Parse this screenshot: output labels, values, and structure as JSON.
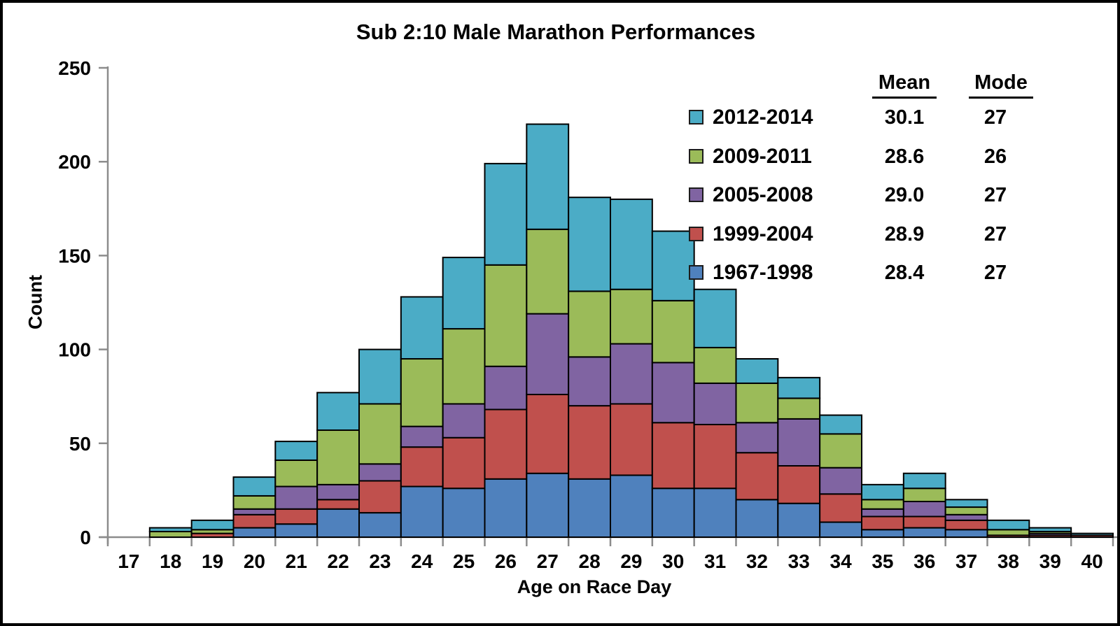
{
  "title": "Sub 2:10 Male Marathon Performances",
  "legend": {
    "mean_header": "Mean",
    "mode_header": "Mode",
    "rows": [
      {
        "label": "2012-2014",
        "mean": "30.1",
        "mode": "27",
        "color": "#4BACC6"
      },
      {
        "label": "2009-2011",
        "mean": "28.6",
        "mode": "26",
        "color": "#9BBB59"
      },
      {
        "label": "2005-2008",
        "mean": "29.0",
        "mode": "27",
        "color": "#8064A2"
      },
      {
        "label": "1999-2004",
        "mean": "28.9",
        "mode": "27",
        "color": "#C0504D"
      },
      {
        "label": "1967-1998",
        "mean": "28.4",
        "mode": "27",
        "color": "#4F81BD"
      }
    ]
  },
  "chart_data": {
    "type": "bar",
    "stacked": true,
    "title": "Sub 2:10 Male Marathon Performances",
    "xlabel": "Age on Race Day",
    "ylabel": "Count",
    "categories": [
      17,
      18,
      19,
      20,
      21,
      22,
      23,
      24,
      25,
      26,
      27,
      28,
      29,
      30,
      31,
      32,
      33,
      34,
      35,
      36,
      37,
      38,
      39,
      40
    ],
    "series": [
      {
        "name": "1967-1998",
        "color": "#4F81BD",
        "values": [
          0,
          0,
          0,
          5,
          7,
          15,
          13,
          27,
          26,
          31,
          34,
          31,
          33,
          26,
          26,
          20,
          18,
          8,
          4,
          5,
          4,
          0,
          0,
          0
        ]
      },
      {
        "name": "1999-2004",
        "color": "#C0504D",
        "values": [
          0,
          0,
          2,
          7,
          8,
          5,
          17,
          21,
          27,
          37,
          42,
          39,
          38,
          35,
          34,
          25,
          20,
          15,
          7,
          6,
          5,
          1,
          1,
          1
        ]
      },
      {
        "name": "2005-2008",
        "color": "#8064A2",
        "values": [
          0,
          0,
          0,
          3,
          12,
          8,
          9,
          11,
          18,
          23,
          43,
          26,
          32,
          32,
          22,
          16,
          25,
          14,
          4,
          8,
          3,
          0,
          1,
          0
        ]
      },
      {
        "name": "2009-2011",
        "color": "#9BBB59",
        "values": [
          0,
          3,
          2,
          7,
          14,
          29,
          32,
          36,
          40,
          54,
          45,
          35,
          29,
          33,
          19,
          21,
          11,
          18,
          5,
          7,
          4,
          3,
          1,
          0
        ]
      },
      {
        "name": "2012-2014",
        "color": "#4BACC6",
        "values": [
          0,
          2,
          5,
          10,
          10,
          20,
          29,
          33,
          38,
          54,
          56,
          50,
          48,
          37,
          31,
          13,
          11,
          10,
          8,
          8,
          4,
          5,
          2,
          1
        ]
      }
    ],
    "totals": [
      0,
      5,
      9,
      32,
      51,
      77,
      100,
      128,
      149,
      199,
      220,
      181,
      180,
      163,
      132,
      95,
      85,
      65,
      28,
      34,
      20,
      9,
      5,
      2
    ],
    "ylim": [
      0,
      250
    ],
    "yticks": [
      0,
      50,
      100,
      150,
      200,
      250
    ],
    "grid": false,
    "legend_position": "top-right",
    "axis_color": "#8c8c8c",
    "bar_border_color": "#000000"
  }
}
